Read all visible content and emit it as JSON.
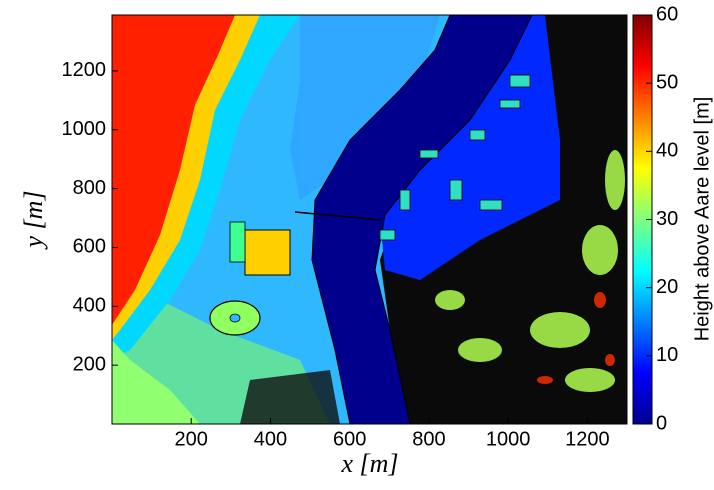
{
  "chart_data": {
    "type": "heatmap",
    "xlabel": "x [m]",
    "ylabel": "y [m]",
    "xlim": [
      0,
      1300
    ],
    "xticks": [
      200,
      400,
      600,
      800,
      1000,
      1200
    ],
    "ylim": [
      0,
      1390
    ],
    "yticks": [
      200,
      400,
      600,
      800,
      1000,
      1200
    ],
    "colormap": "jet",
    "colorbar": {
      "label": "Height above Aare level [m]",
      "lim": [
        0,
        60
      ],
      "ticks": [
        0,
        10,
        20,
        30,
        40,
        50,
        60
      ]
    }
  }
}
